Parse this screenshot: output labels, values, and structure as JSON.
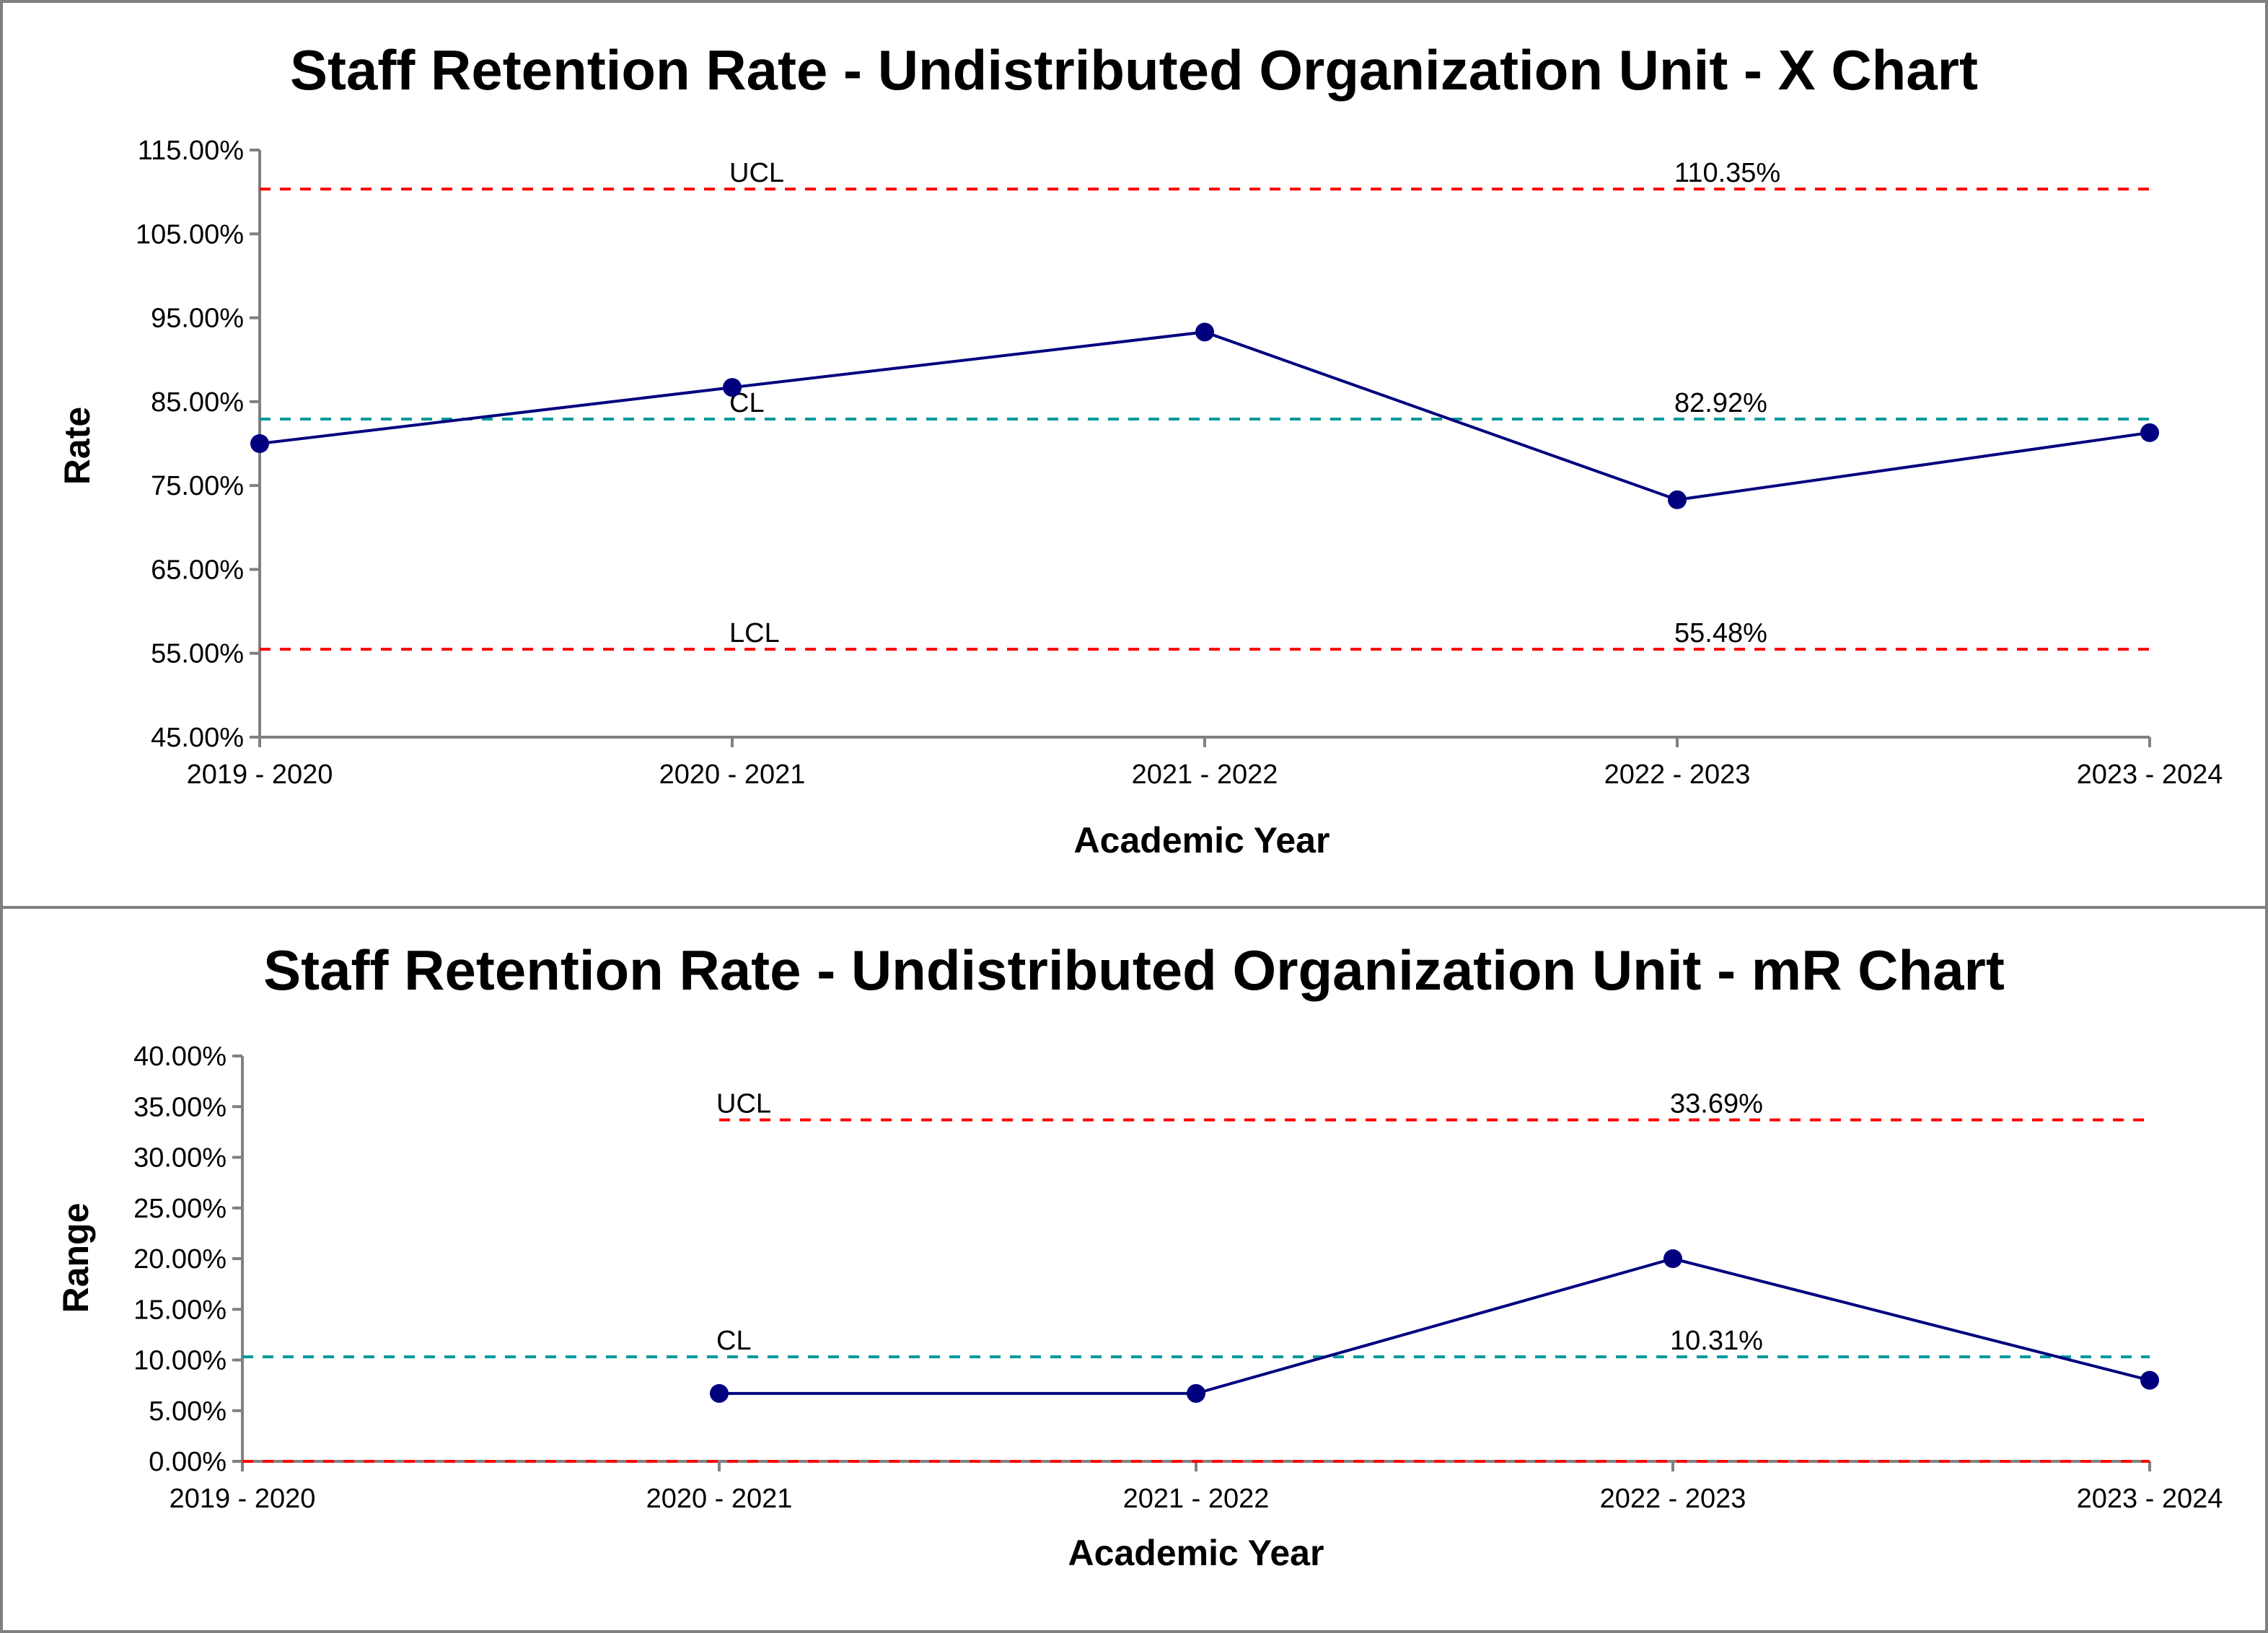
{
  "colors": {
    "series": "#00007f",
    "control_limit": "#ff0000",
    "center_line": "#00999a",
    "axis": "#808080"
  },
  "chart_data": [
    {
      "type": "line",
      "title": "Staff Retention Rate - Undistributed Organization Unit - X Chart",
      "xlabel": "Academic Year",
      "ylabel": "Rate",
      "categories": [
        "2019 - 2020",
        "2020 - 2021",
        "2021 - 2022",
        "2022 - 2023",
        "2023 - 2024"
      ],
      "yticks": [
        "45.00%",
        "55.00%",
        "65.00%",
        "75.00%",
        "85.00%",
        "95.00%",
        "105.00%",
        "115.00%"
      ],
      "ylim": [
        45,
        115
      ],
      "grid": false,
      "series": [
        {
          "values": [
            80.0,
            86.7,
            93.3,
            73.3,
            81.3
          ]
        }
      ],
      "control_lines": [
        {
          "label": "UCL",
          "value": 110.35,
          "value_label": "110.35%",
          "kind": "limit"
        },
        {
          "label": "CL",
          "value": 82.92,
          "value_label": "82.92%",
          "kind": "center"
        },
        {
          "label": "LCL",
          "value": 55.48,
          "value_label": "55.48%",
          "kind": "limit"
        }
      ]
    },
    {
      "type": "line",
      "title": "Staff Retention Rate - Undistributed Organization Unit - mR Chart",
      "xlabel": "Academic Year",
      "ylabel": "Range",
      "categories": [
        "2019 - 2020",
        "2020 - 2021",
        "2021 - 2022",
        "2022 - 2023",
        "2023 - 2024"
      ],
      "yticks": [
        "0.00%",
        "5.00%",
        "10.00%",
        "15.00%",
        "20.00%",
        "25.00%",
        "30.00%",
        "35.00%",
        "40.00%"
      ],
      "ylim": [
        0,
        40
      ],
      "grid": false,
      "series": [
        {
          "values": [
            null,
            6.7,
            6.7,
            20.0,
            8.0
          ]
        }
      ],
      "control_lines": [
        {
          "label": "UCL",
          "value": 33.69,
          "value_label": "33.69%",
          "kind": "limit",
          "start_category": 1
        },
        {
          "label": "CL",
          "value": 10.31,
          "value_label": "10.31%",
          "kind": "center",
          "start_category": 0
        },
        {
          "label": "",
          "value": 0,
          "value_label": "",
          "kind": "limit",
          "start_category": 0
        }
      ]
    }
  ]
}
